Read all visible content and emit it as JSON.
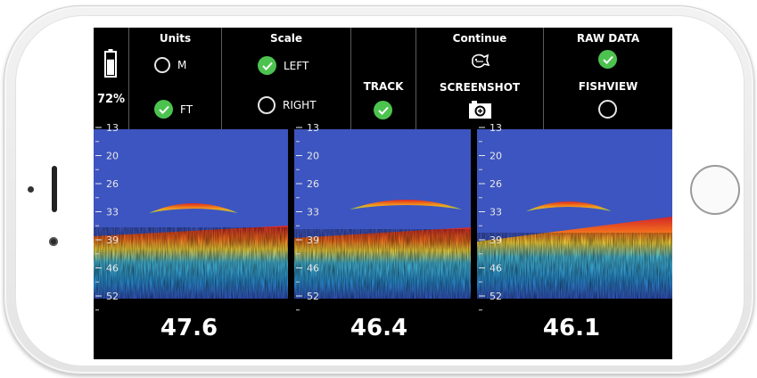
{
  "battery": {
    "percent": "72%",
    "level": 0.72,
    "icon": "battery-icon"
  },
  "units": {
    "header": "Units",
    "options": [
      {
        "label": "M",
        "selected": false
      },
      {
        "label": "FT",
        "selected": true
      }
    ]
  },
  "scale": {
    "header": "Scale",
    "options": [
      {
        "label": "LEFT",
        "selected": true
      },
      {
        "label": "RIGHT",
        "selected": false
      }
    ]
  },
  "track": {
    "label": "TRACK",
    "selected": true
  },
  "continue": {
    "header": "Continue",
    "screenshot_label": "SCREENSHOT",
    "icons": [
      "fish-continue-icon",
      "camera-icon"
    ]
  },
  "raw_data": {
    "header": "RAW DATA",
    "selected": true
  },
  "fishview": {
    "label": "FISHVIEW",
    "selected": false
  },
  "colors": {
    "check_green": "#4cc34f",
    "sonar_blue": "#3d55c0",
    "background": "#000000",
    "text": "#ffffff"
  },
  "sonar_panels": [
    {
      "scale_labels": [
        "13",
        "20",
        "26",
        "33",
        "39",
        "46",
        "52"
      ],
      "depth": "47.6"
    },
    {
      "scale_labels": [
        "13",
        "20",
        "26",
        "33",
        "39",
        "46",
        "52"
      ],
      "depth": "46.4"
    },
    {
      "scale_labels": [
        "13",
        "20",
        "26",
        "33",
        "39",
        "46",
        "52"
      ],
      "depth": "46.1"
    }
  ]
}
